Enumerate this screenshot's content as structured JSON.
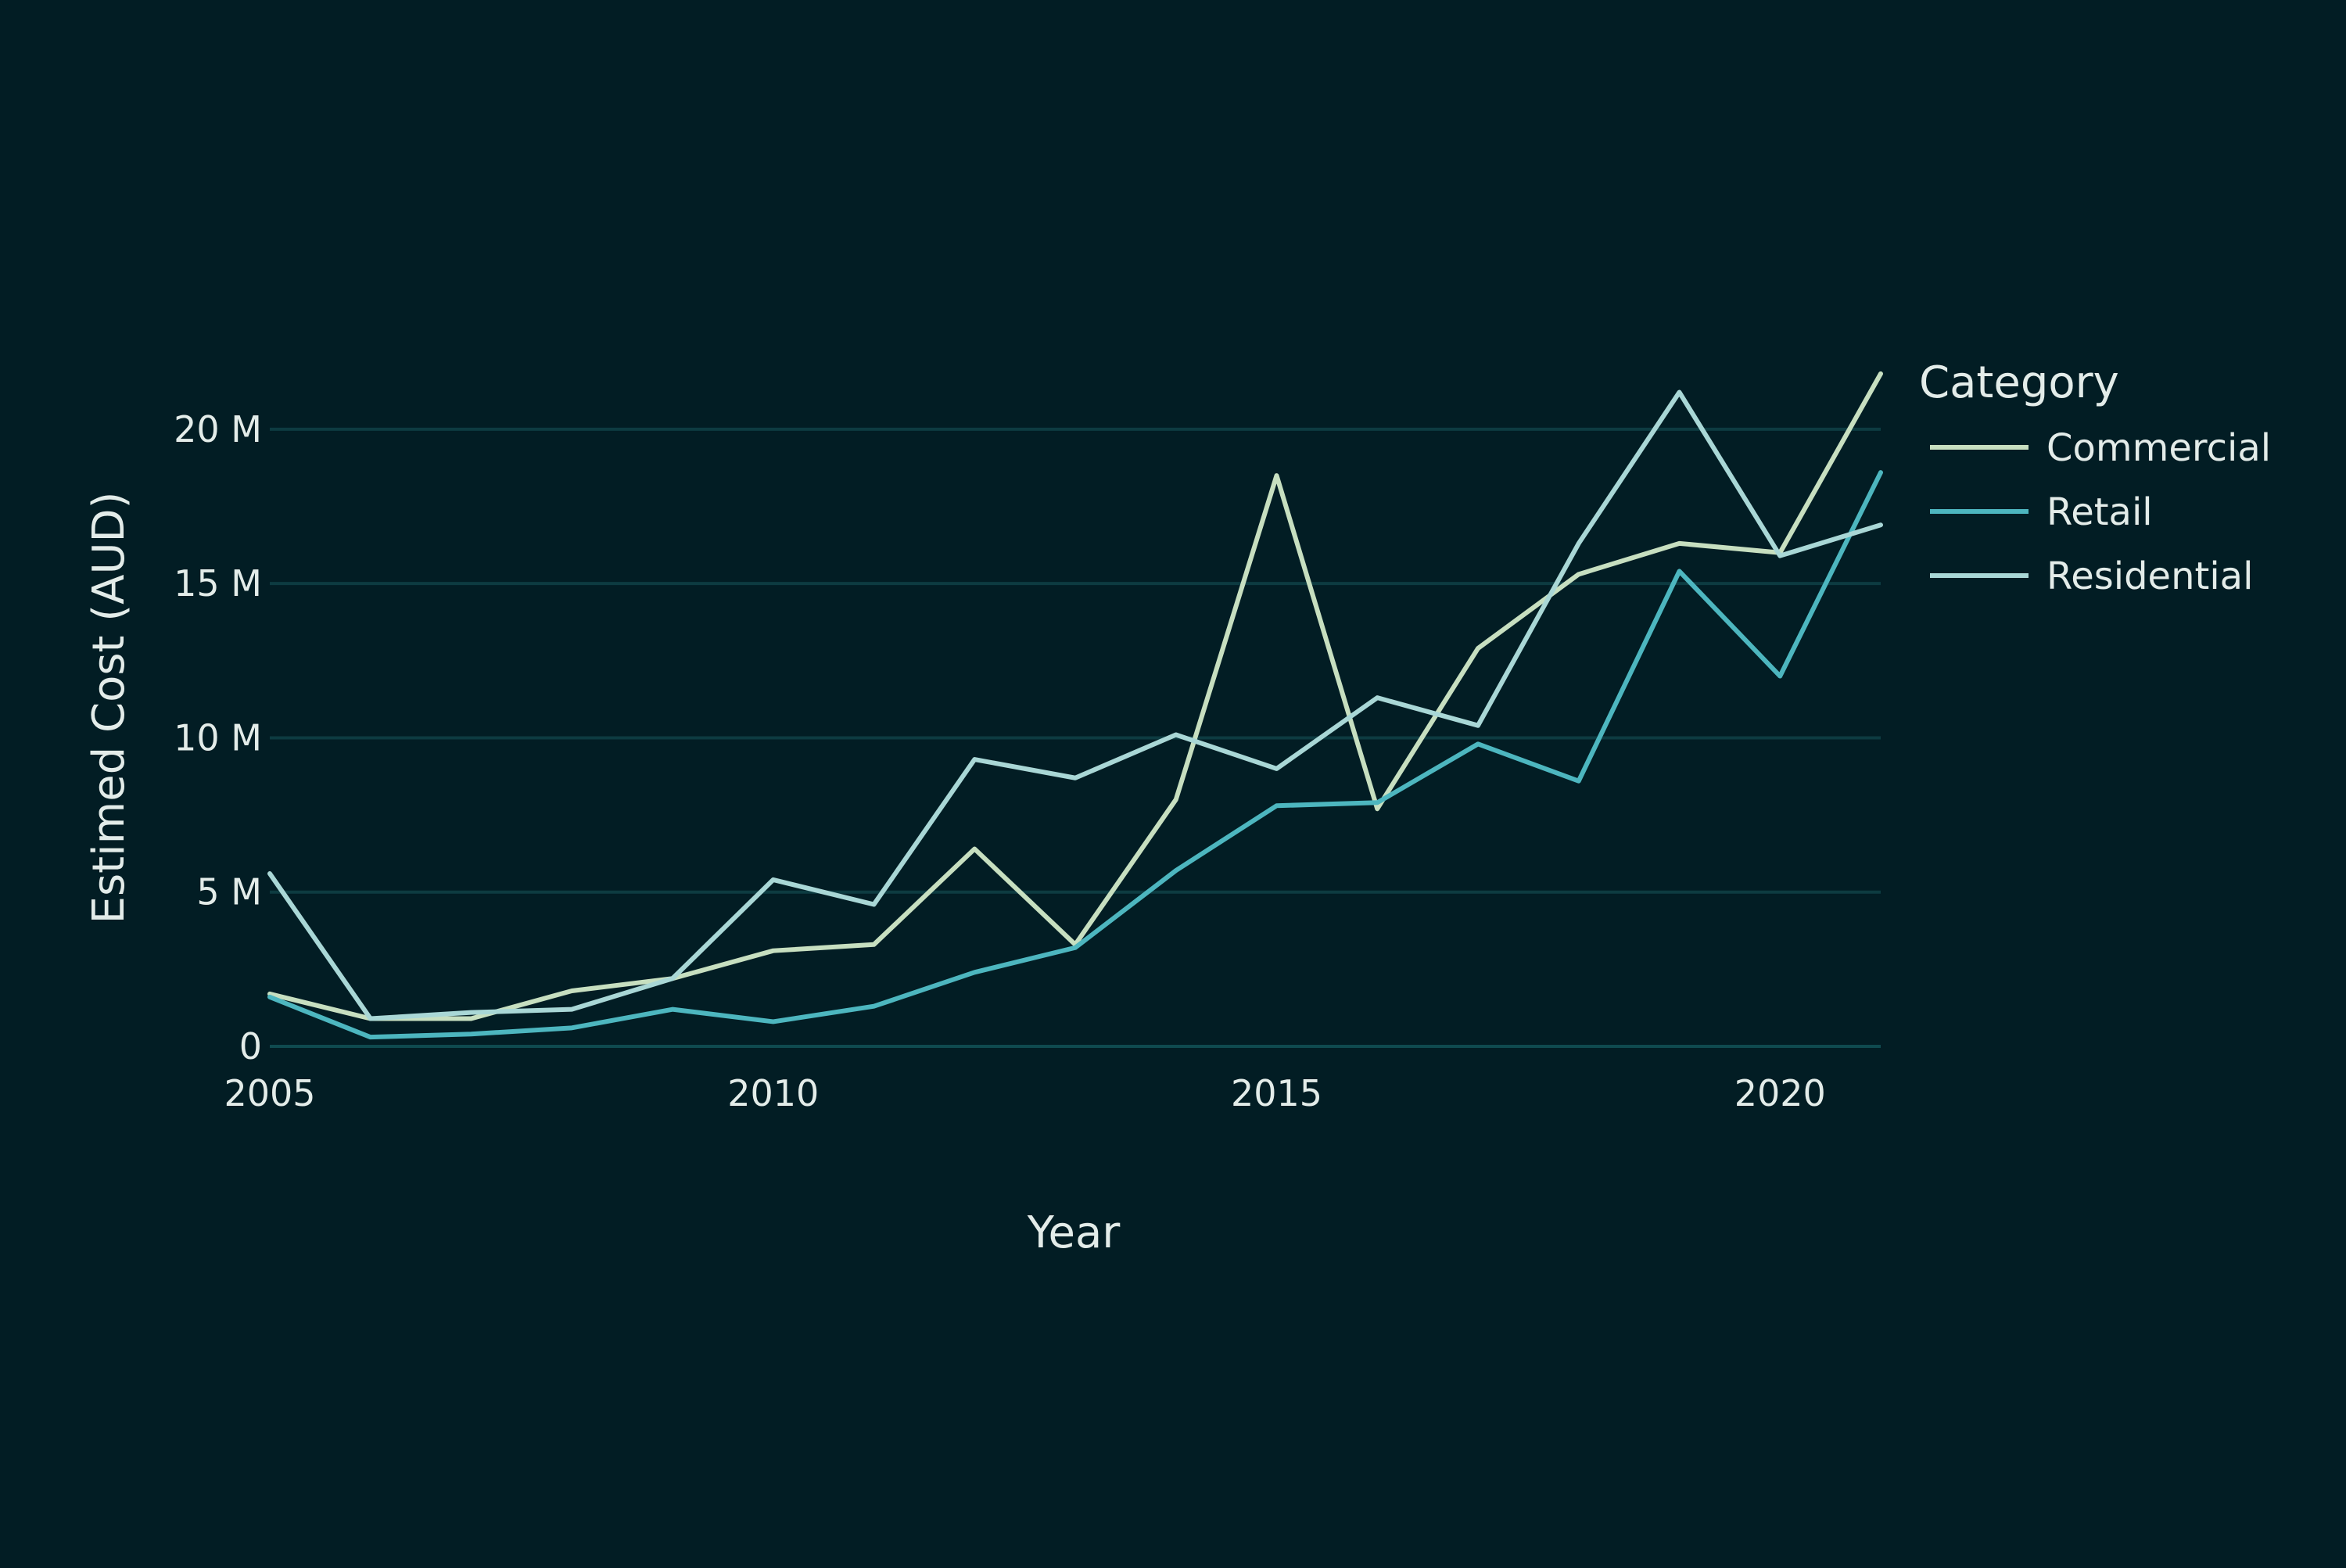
{
  "chart_data": {
    "type": "line",
    "title": "",
    "xlabel": "Year",
    "ylabel": "Estimed Cost (AUD)",
    "x": [
      2005,
      2006,
      2007,
      2008,
      2009,
      2010,
      2011,
      2012,
      2013,
      2014,
      2015,
      2016,
      2017,
      2018,
      2019,
      2020,
      2021
    ],
    "xlim": [
      2005,
      2021
    ],
    "ylim": [
      0,
      22000000
    ],
    "x_ticks": [
      {
        "value": 2005,
        "label": "2005"
      },
      {
        "value": 2010,
        "label": "2010"
      },
      {
        "value": 2015,
        "label": "2015"
      },
      {
        "value": 2020,
        "label": "2020"
      }
    ],
    "y_ticks": [
      {
        "value": 0,
        "label": "0"
      },
      {
        "value": 5000000,
        "label": "5 M"
      },
      {
        "value": 10000000,
        "label": "10 M"
      },
      {
        "value": 15000000,
        "label": "15 M"
      },
      {
        "value": 20000000,
        "label": "20 M"
      }
    ],
    "grid": true,
    "legend": {
      "title": "Category",
      "placement": "right"
    },
    "series": [
      {
        "name": "Commercial",
        "color": "#c7dfc0",
        "values": [
          1700000,
          900000,
          900000,
          1800000,
          2200000,
          3100000,
          3300000,
          6400000,
          3300000,
          8000000,
          18500000,
          7700000,
          12900000,
          15300000,
          16300000,
          16000000,
          21800000
        ]
      },
      {
        "name": "Retail",
        "color": "#4db6bf",
        "values": [
          1600000,
          300000,
          400000,
          600000,
          1200000,
          800000,
          1300000,
          2400000,
          3200000,
          5700000,
          7800000,
          7900000,
          9800000,
          8600000,
          15400000,
          12000000,
          18600000
        ]
      },
      {
        "name": "Residential",
        "color": "#a9d7d6",
        "values": [
          5600000,
          900000,
          1100000,
          1200000,
          2200000,
          5400000,
          4600000,
          9300000,
          8700000,
          10100000,
          9000000,
          11300000,
          10400000,
          16300000,
          21200000,
          15900000,
          16900000
        ]
      }
    ]
  }
}
